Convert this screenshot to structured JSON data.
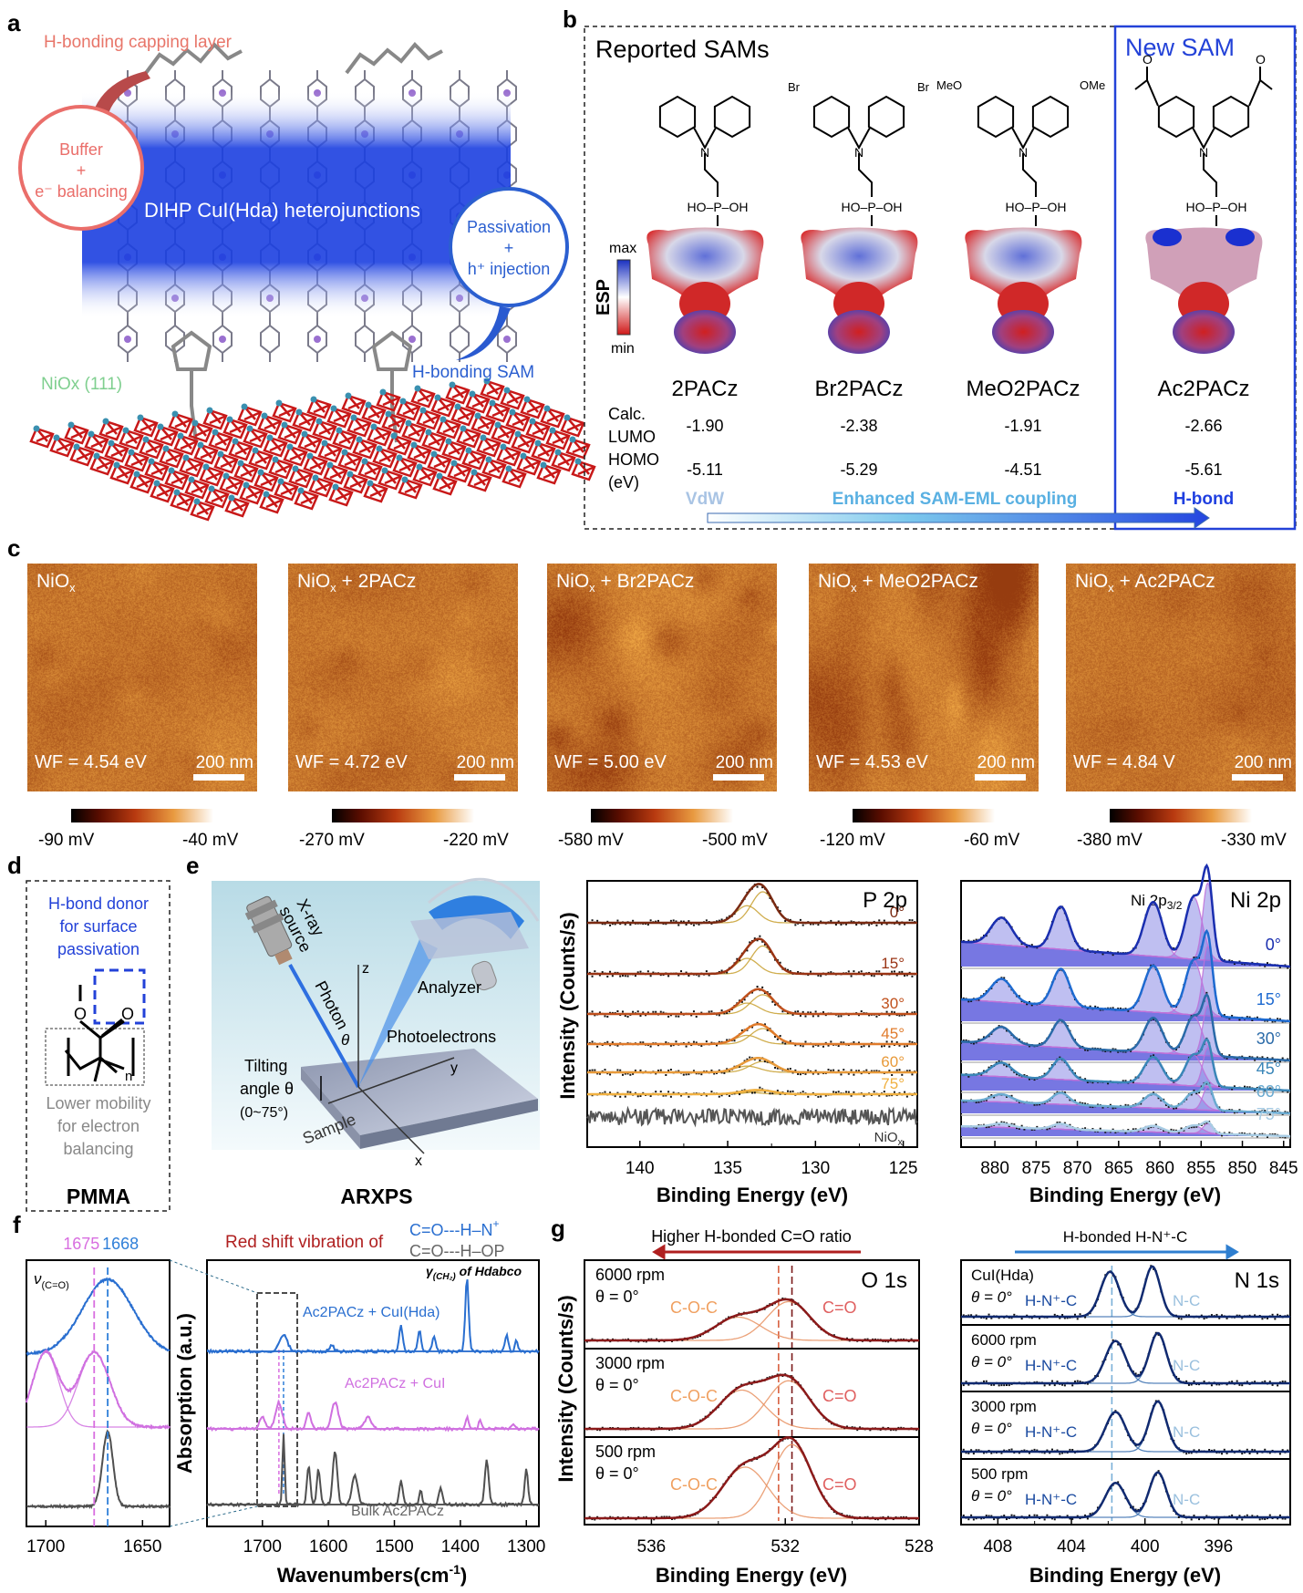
{
  "panel_labels": {
    "a": "a",
    "b": "b",
    "c": "c",
    "d": "d",
    "e": "e",
    "f": "f",
    "g": "g"
  },
  "panel_a": {
    "capping_label": "H-bonding capping layer",
    "buffer_lines": [
      "Buffer",
      "+",
      "e⁻ balancing"
    ],
    "heterojunction_label": "DIHP CuI(Hda) heterojunctions",
    "passivation_lines": [
      "Passivation",
      "+",
      "h⁺ injection"
    ],
    "sam_label": "H-bonding SAM",
    "nio_label": "NiOx (111)",
    "colors": {
      "capping": "#e8766a",
      "band": "#1b3fe0",
      "sam": "#2b5fd0",
      "nio": "#7fcf8f"
    }
  },
  "panel_b": {
    "reported_title": "Reported SAMs",
    "new_title": "New SAM",
    "esp": {
      "axis": "ESP",
      "max": "max",
      "min": "min"
    },
    "structure_text": {
      "n": "N",
      "phos": "HO–P–OH",
      "oxo": "O",
      "br": "Br",
      "meo": "MeO",
      "ome": "OMe",
      "ketone_o": "O"
    },
    "row_labels": [
      "Calc.",
      "LUMO",
      "HOMO",
      "(eV)"
    ],
    "molecules": [
      {
        "name": "2PACz",
        "lumo": "-1.90",
        "homo": "-5.11",
        "substituent": "none"
      },
      {
        "name": "Br2PACz",
        "lumo": "-2.38",
        "homo": "-5.29",
        "substituent": "Br"
      },
      {
        "name": "MeO2PACz",
        "lumo": "-1.91",
        "homo": "-4.51",
        "substituent": "OMe"
      },
      {
        "name": "Ac2PACz",
        "lumo": "-2.66",
        "homo": "-5.61",
        "substituent": "acetyl"
      }
    ],
    "interaction_labels": {
      "vdw": "VdW",
      "enhanced": "Enhanced SAM-EML coupling",
      "hbond": "H-bond"
    },
    "colors": {
      "vdw": "#a9c4e4",
      "enhanced": "#59b0e2",
      "hbond": "#1f3fe0",
      "new_box": "#2342d8"
    }
  },
  "panel_c": {
    "images": [
      {
        "title_main": "NiO",
        "title_sub": "x",
        "title_rest": "",
        "wf": "WF = 4.54 eV",
        "scale": "200 nm",
        "cb_min": "-90 mV",
        "cb_max": "-40 mV",
        "roughness": 0.35
      },
      {
        "title_main": "NiO",
        "title_sub": "x",
        "title_rest": " + 2PACz",
        "wf": "WF = 4.72 eV",
        "scale": "200 nm",
        "cb_min": "-270 mV",
        "cb_max": "-220 mV",
        "roughness": 0.3
      },
      {
        "title_main": "NiO",
        "title_sub": "x",
        "title_rest": " + Br2PACz",
        "wf": "WF = 5.00 eV",
        "scale": "200 nm",
        "cb_min": "-580 mV",
        "cb_max": "-500 mV",
        "roughness": 0.7
      },
      {
        "title_main": "NiO",
        "title_sub": "x",
        "title_rest": " + MeO2PACz",
        "wf": "WF = 4.53 eV",
        "scale": "200 nm",
        "cb_min": "-120 mV",
        "cb_max": "-60 mV",
        "roughness": 0.8
      },
      {
        "title_main": "NiO",
        "title_sub": "x",
        "title_rest": " + Ac2PACz",
        "wf": "WF = 4.84 V",
        "scale": "200 nm",
        "cb_min": "-380 mV",
        "cb_max": "-330 mV",
        "roughness": 0.25
      }
    ]
  },
  "panel_d": {
    "donor_lines": [
      "H-bond donor",
      "for surface",
      "passivation"
    ],
    "mobility_lines": [
      "Lower mobility",
      "for electron",
      "balancing"
    ],
    "structure_text": {
      "o1": "O",
      "o2": "O",
      "n": "n"
    },
    "name": "PMMA"
  },
  "panel_e": {
    "schematic": {
      "source_lines": [
        "X-ray",
        "source"
      ],
      "photon": "Photon",
      "theta": "θ",
      "analyzer": "Analyzer",
      "photoelectrons": "Photoelectrons",
      "axes": {
        "x": "x",
        "y": "y",
        "z": "z"
      },
      "tilt_lines": [
        "Tilting",
        "angle θ",
        "(0~75°)"
      ],
      "sample": "Sample",
      "name": "ARXPS"
    }
  },
  "chart_data": [
    {
      "id": "p2p",
      "type": "line",
      "title": "P 2p",
      "xlabel": "Binding Energy (eV)",
      "ylabel": "Intensity (Counts/s)",
      "xlim": [
        143,
        124.2
      ],
      "xticks": [
        140,
        135,
        130,
        125
      ],
      "reversed_x": true,
      "series": [
        {
          "name": "0°",
          "color": "#7a2a12",
          "peaks": [
            [
              133.0,
              1.0,
              1.5
            ],
            [
              133.9,
              0.55,
              1.5
            ]
          ]
        },
        {
          "name": "15°",
          "color": "#9a3414",
          "peaks": [
            [
              133.0,
              0.9,
              1.5
            ],
            [
              133.9,
              0.5,
              1.5
            ]
          ]
        },
        {
          "name": "30°",
          "color": "#c0501c",
          "peaks": [
            [
              133.0,
              0.62,
              1.6
            ],
            [
              133.9,
              0.35,
              1.6
            ]
          ]
        },
        {
          "name": "45°",
          "color": "#e07a2a",
          "peaks": [
            [
              133.0,
              0.5,
              1.6
            ],
            [
              133.9,
              0.28,
              1.6
            ]
          ]
        },
        {
          "name": "60°",
          "color": "#e89a3a",
          "peaks": [
            [
              133.0,
              0.35,
              1.7
            ],
            [
              133.9,
              0.2,
              1.7
            ]
          ]
        },
        {
          "name": "75°",
          "color": "#f0b040",
          "peaks": [
            [
              133.0,
              0.1,
              1.8
            ],
            [
              133.9,
              0.06,
              1.8
            ]
          ]
        },
        {
          "name": "NiOx",
          "label_main": "NiO",
          "label_sub": "x",
          "color": "#555555",
          "peaks": []
        }
      ]
    },
    {
      "id": "ni2p",
      "type": "line",
      "title": "Ni 2p",
      "annotation_main": "Ni 2p",
      "annotation_sub": "3/2",
      "xlabel": "Binding Energy (eV)",
      "xlim": [
        884.1,
        844.2
      ],
      "xticks": [
        880,
        875,
        870,
        865,
        860,
        855,
        850,
        845
      ],
      "reversed_x": true,
      "series": [
        {
          "name": "0°",
          "color": "#1a2fb0",
          "peaks": [
            [
              854.2,
              1.0,
              1.4
            ],
            [
              855.9,
              0.8,
              2.4
            ],
            [
              860.8,
              0.7,
              2.6
            ],
            [
              872.0,
              0.55,
              2.4
            ],
            [
              879.2,
              0.35,
              3.0
            ]
          ]
        },
        {
          "name": "15°",
          "color": "#1e6ad0",
          "peaks": [
            [
              854.2,
              0.9,
              1.4
            ],
            [
              855.9,
              0.7,
              2.4
            ],
            [
              860.8,
              0.6,
              2.6
            ],
            [
              872.0,
              0.48,
              2.4
            ],
            [
              879.2,
              0.3,
              3.0
            ]
          ]
        },
        {
          "name": "30°",
          "color": "#2a6aa8",
          "peaks": [
            [
              854.2,
              0.65,
              1.4
            ],
            [
              855.9,
              0.5,
              2.4
            ],
            [
              860.8,
              0.45,
              2.6
            ],
            [
              872.0,
              0.35,
              2.4
            ],
            [
              879.2,
              0.22,
              3.0
            ]
          ]
        },
        {
          "name": "45°",
          "color": "#3a86b8",
          "peaks": [
            [
              854.2,
              0.5,
              1.4
            ],
            [
              855.9,
              0.4,
              2.4
            ],
            [
              860.8,
              0.35,
              2.6
            ],
            [
              872.0,
              0.27,
              2.4
            ],
            [
              879.2,
              0.18,
              3.0
            ]
          ]
        },
        {
          "name": "60°",
          "color": "#6aaad0",
          "peaks": [
            [
              854.2,
              0.3,
              1.4
            ],
            [
              855.9,
              0.22,
              2.4
            ],
            [
              860.8,
              0.18,
              2.6
            ],
            [
              872.0,
              0.15,
              2.4
            ],
            [
              879.2,
              0.1,
              3.0
            ]
          ]
        },
        {
          "name": "75°",
          "color": "#a8cce4",
          "peaks": [
            [
              854.2,
              0.13,
              1.4
            ],
            [
              855.9,
              0.1,
              2.4
            ],
            [
              860.8,
              0.08,
              2.6
            ],
            [
              872.0,
              0.07,
              2.4
            ],
            [
              879.2,
              0.05,
              3.0
            ]
          ]
        }
      ]
    },
    {
      "id": "ftir",
      "type": "line",
      "xlabel_main": "Wavenumbers(cm",
      "xlabel_sup": "-1",
      "xlabel_end": ")",
      "ylabel": "Absorption (a.u.)",
      "xlim": [
        1784,
        1281
      ],
      "xticks": [
        1700,
        1600,
        1500,
        1400,
        1300
      ],
      "reversed_x": true,
      "inset": {
        "xlim": [
          1710,
          1636
        ],
        "xticks": [
          1700,
          1650
        ],
        "label": "ν",
        "label_sub": "(C=O)"
      },
      "markers": [
        {
          "value": 1675,
          "label": "1675",
          "color": "#d86ee0"
        },
        {
          "value": 1668,
          "label": "1668",
          "color": "#2f7fd8"
        }
      ],
      "annotation_title": "Red shift vibration of",
      "annotation_hn": "C=O---H–N",
      "annotation_hn_sup": "+",
      "annotation_hop": "C=O---H–OP",
      "gamma_label": "γ",
      "gamma_sub": "(CH₂)",
      "gamma_rest": " of Hdabco",
      "series": [
        {
          "name": "Ac2PACz + CuI(Hda)",
          "color": "#2a6fd0",
          "peaks": [
            [
              1668,
              0.22,
              14
            ],
            [
              1595,
              0.08,
              8
            ],
            [
              1490,
              0.35,
              6
            ],
            [
              1462,
              0.28,
              6
            ],
            [
              1440,
              0.2,
              6
            ],
            [
              1390,
              1.0,
              6
            ],
            [
              1330,
              0.22,
              6
            ],
            [
              1315,
              0.15,
              5
            ]
          ]
        },
        {
          "name": "Ac2PACz + CuI",
          "color": "#d070e0",
          "peaks": [
            [
              1700,
              0.25,
              10
            ],
            [
              1675,
              0.55,
              12
            ],
            [
              1630,
              0.35,
              8
            ],
            [
              1590,
              0.55,
              12
            ],
            [
              1540,
              0.25,
              12
            ],
            [
              1390,
              0.25,
              5
            ],
            [
              1370,
              0.2,
              5
            ],
            [
              1320,
              0.1,
              6
            ]
          ]
        },
        {
          "name": "Bulk Ac2PACz",
          "color": "#505050",
          "peaks": [
            [
              1668,
              1.0,
              4
            ],
            [
              1630,
              0.55,
              6
            ],
            [
              1615,
              0.5,
              6
            ],
            [
              1590,
              0.75,
              8
            ],
            [
              1560,
              0.4,
              10
            ],
            [
              1490,
              0.35,
              6
            ],
            [
              1460,
              0.2,
              5
            ],
            [
              1430,
              0.25,
              6
            ],
            [
              1360,
              0.62,
              7
            ],
            [
              1300,
              0.5,
              6
            ]
          ]
        }
      ]
    },
    {
      "id": "o1s",
      "type": "line",
      "title": "O 1s",
      "xlabel": "Binding Energy (eV)",
      "ylabel": "Intensity (Counts/s)",
      "xlim": [
        538,
        528
      ],
      "xticks": [
        536,
        532,
        528
      ],
      "reversed_x": true,
      "header": "Higher H-bonded C=O ratio",
      "header_color": "#b02020",
      "component_labels": {
        "coc": "C-O-C",
        "co": "C=O"
      },
      "reference_lines": [
        532.2,
        531.8
      ],
      "panels": [
        {
          "rpm": "6000 rpm",
          "theta": "θ = 0°",
          "coc": [
            533.4,
            0.3,
            1.6
          ],
          "co": [
            531.9,
            0.5,
            1.5
          ]
        },
        {
          "rpm": "3000 rpm",
          "theta": "θ = 0°",
          "coc": [
            533.3,
            0.5,
            1.6
          ],
          "co": [
            531.9,
            0.62,
            1.5
          ]
        },
        {
          "rpm": "500 rpm",
          "theta": "θ = 0°",
          "coc": [
            533.2,
            0.66,
            1.6
          ],
          "co": [
            531.8,
            0.95,
            1.4
          ]
        }
      ]
    },
    {
      "id": "n1s",
      "type": "line",
      "title": "N 1s",
      "xlabel": "Binding Energy (eV)",
      "xlim": [
        410,
        392.1
      ],
      "xticks": [
        408,
        404,
        400,
        396
      ],
      "reversed_x": true,
      "header": "H-bonded H-N⁺-C",
      "header_color": "#2f7fd0",
      "component_labels": {
        "hn": "H-N⁺-C",
        "nc": "N-C"
      },
      "reference_line": 401.8,
      "panels": [
        {
          "label": "CuI(Hda)",
          "theta": "θ = 0°",
          "hn": [
            401.9,
            0.85,
            1.2
          ],
          "nc": [
            399.6,
            0.95,
            1.0
          ]
        },
        {
          "label": "6000 rpm",
          "theta": "θ = 0°",
          "hn": [
            401.6,
            0.8,
            1.3
          ],
          "nc": [
            399.3,
            0.95,
            1.1
          ]
        },
        {
          "label": "3000 rpm",
          "theta": "θ = 0°",
          "hn": [
            401.6,
            0.75,
            1.3
          ],
          "nc": [
            399.3,
            0.95,
            1.1
          ]
        },
        {
          "label": "500 rpm",
          "theta": "θ = 0°",
          "hn": [
            401.6,
            0.65,
            1.3
          ],
          "nc": [
            399.3,
            0.85,
            1.1
          ]
        }
      ]
    }
  ]
}
